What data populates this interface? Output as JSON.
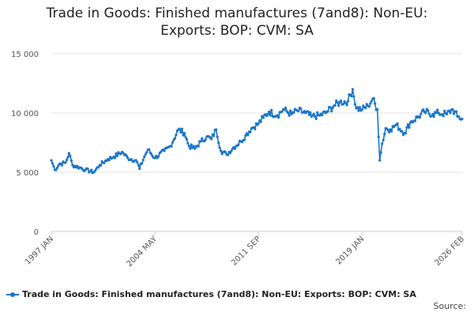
{
  "title_line1": "Trade in Goods: Finished manufactures (7and8): Non-EU:",
  "title_line2": "Exports: BOP: CVM: SA",
  "source_label": "Source:",
  "colors": {
    "series": "#1a75c8",
    "grid": "#e6e6e6",
    "axis": "#cccccc"
  },
  "chart_data": {
    "type": "line",
    "title": "Trade in Goods: Finished manufactures (7and8): Non-EU: Exports: BOP: CVM: SA",
    "xlabel": "",
    "ylabel": "",
    "ylim": [
      0,
      15000
    ],
    "yticks": [
      0,
      5000,
      10000,
      15000
    ],
    "ytick_labels": [
      "0",
      "5 000",
      "10 000",
      "15 000"
    ],
    "xlim": [
      "1997-01",
      "2026-02"
    ],
    "xticks": [
      "1997-01",
      "2004-05",
      "2011-09",
      "2019-01",
      "2026-02"
    ],
    "xtick_labels": [
      "1997 JAN",
      "2004 MAY",
      "2011 SEP",
      "2019 JAN",
      "2026 FEB"
    ],
    "grid": "horizontal",
    "legend_position": "bottom",
    "series": [
      {
        "name": "Trade in Goods: Finished manufactures (7and8): Non-EU: Exports: BOP: CVM: SA",
        "anchors": [
          [
            "1997-01",
            6000
          ],
          [
            "1997-04",
            5200
          ],
          [
            "1997-08",
            5700
          ],
          [
            "1998-01",
            5800
          ],
          [
            "1998-04",
            6600
          ],
          [
            "1998-07",
            5600
          ],
          [
            "1999-01",
            5400
          ],
          [
            "1999-06",
            5200
          ],
          [
            "2000-01",
            5000
          ],
          [
            "2000-06",
            5600
          ],
          [
            "2001-01",
            6100
          ],
          [
            "2001-06",
            6300
          ],
          [
            "2002-01",
            6700
          ],
          [
            "2002-06",
            6200
          ],
          [
            "2003-01",
            6000
          ],
          [
            "2003-04",
            5300
          ],
          [
            "2003-08",
            6300
          ],
          [
            "2003-11",
            6900
          ],
          [
            "2004-05",
            6200
          ],
          [
            "2005-01",
            6800
          ],
          [
            "2005-06",
            7200
          ],
          [
            "2006-01",
            8600
          ],
          [
            "2006-06",
            8300
          ],
          [
            "2006-10",
            7200
          ],
          [
            "2007-03",
            7000
          ],
          [
            "2007-08",
            7600
          ],
          [
            "2008-01",
            8000
          ],
          [
            "2008-05",
            7800
          ],
          [
            "2008-09",
            8600
          ],
          [
            "2009-01",
            6800
          ],
          [
            "2009-06",
            6500
          ],
          [
            "2009-12",
            7100
          ],
          [
            "2010-06",
            7600
          ],
          [
            "2010-10",
            8100
          ],
          [
            "2011-03",
            8700
          ],
          [
            "2011-09",
            9100
          ],
          [
            "2012-01",
            9600
          ],
          [
            "2012-06",
            10100
          ],
          [
            "2013-01",
            9800
          ],
          [
            "2013-06",
            10300
          ],
          [
            "2014-01",
            9900
          ],
          [
            "2014-06",
            10200
          ],
          [
            "2015-01",
            10000
          ],
          [
            "2015-06",
            9700
          ],
          [
            "2016-01",
            9800
          ],
          [
            "2016-06",
            10000
          ],
          [
            "2017-01",
            10600
          ],
          [
            "2017-06",
            10900
          ],
          [
            "2018-01",
            11000
          ],
          [
            "2018-05",
            12000
          ],
          [
            "2018-08",
            10400
          ],
          [
            "2019-01",
            10300
          ],
          [
            "2019-06",
            10600
          ],
          [
            "2019-10",
            11200
          ],
          [
            "2020-02",
            10300
          ],
          [
            "2020-04",
            6000
          ],
          [
            "2020-06",
            7400
          ],
          [
            "2020-09",
            8700
          ],
          [
            "2021-01",
            8600
          ],
          [
            "2021-06",
            9000
          ],
          [
            "2022-01",
            8300
          ],
          [
            "2022-06",
            9200
          ],
          [
            "2023-01",
            9700
          ],
          [
            "2023-06",
            10100
          ],
          [
            "2024-01",
            9900
          ],
          [
            "2024-06",
            10000
          ],
          [
            "2025-01",
            9900
          ],
          [
            "2025-06",
            10300
          ],
          [
            "2025-10",
            9700
          ],
          [
            "2026-02",
            9500
          ]
        ]
      }
    ]
  }
}
